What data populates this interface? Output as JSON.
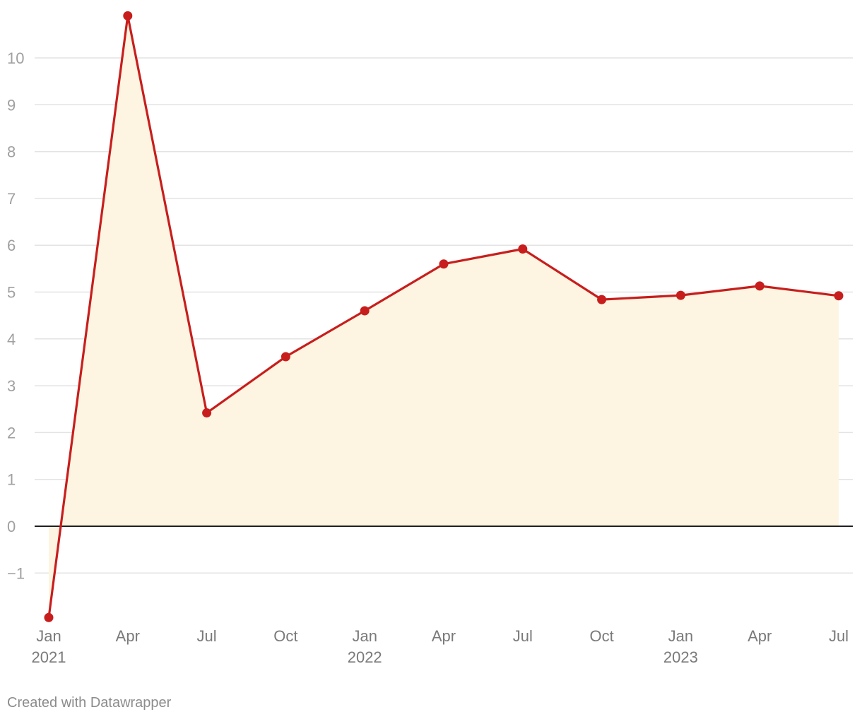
{
  "chart_data": {
    "type": "area",
    "title": "",
    "xlabel": "",
    "ylabel": "",
    "x": [
      "2021-01",
      "2021-04",
      "2021-07",
      "2021-10",
      "2022-01",
      "2022-04",
      "2022-07",
      "2022-10",
      "2023-01",
      "2023-04",
      "2023-07"
    ],
    "series": [
      {
        "values": [
          -1.95,
          10.9,
          2.42,
          3.62,
          4.6,
          5.6,
          5.92,
          4.84,
          4.93,
          5.13,
          4.92
        ]
      }
    ],
    "ylim": [
      -2,
      11
    ],
    "y_ticks": [
      {
        "value": 10,
        "label": "10"
      },
      {
        "value": 9,
        "label": "9"
      },
      {
        "value": 8,
        "label": "8"
      },
      {
        "value": 7,
        "label": "7"
      },
      {
        "value": 6,
        "label": "6"
      },
      {
        "value": 5,
        "label": "5"
      },
      {
        "value": 4,
        "label": "4"
      },
      {
        "value": 3,
        "label": "3"
      },
      {
        "value": 2,
        "label": "2"
      },
      {
        "value": 1,
        "label": "1"
      },
      {
        "value": 0,
        "label": "0"
      },
      {
        "value": -1,
        "label": "−1"
      }
    ],
    "x_ticks": [
      {
        "index": 0,
        "label": "Jan",
        "year": "2021"
      },
      {
        "index": 1,
        "label": "Apr",
        "year": ""
      },
      {
        "index": 2,
        "label": "Jul",
        "year": ""
      },
      {
        "index": 3,
        "label": "Oct",
        "year": ""
      },
      {
        "index": 4,
        "label": "Jan",
        "year": "2022"
      },
      {
        "index": 5,
        "label": "Apr",
        "year": ""
      },
      {
        "index": 6,
        "label": "Jul",
        "year": ""
      },
      {
        "index": 7,
        "label": "Oct",
        "year": ""
      },
      {
        "index": 8,
        "label": "Jan",
        "year": "2023"
      },
      {
        "index": 9,
        "label": "Apr",
        "year": ""
      },
      {
        "index": 10,
        "label": "Jul",
        "year": ""
      }
    ],
    "grid": true,
    "legend": "none",
    "colors": {
      "line": "#c71e1d",
      "area": "#fdf5e1",
      "grid": "#e3e3e3",
      "zero_line": "#000000"
    }
  },
  "footer": {
    "credit": "Created with Datawrapper"
  }
}
